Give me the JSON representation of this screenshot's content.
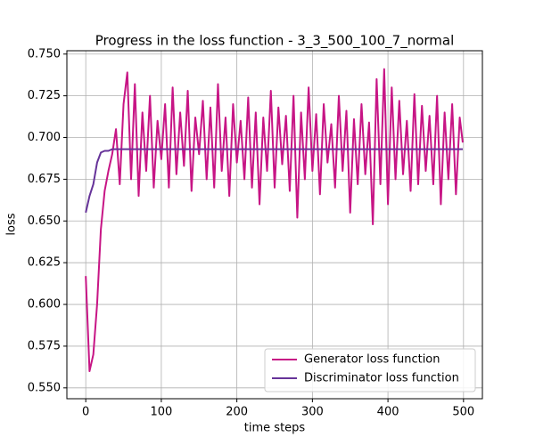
{
  "chart_data": {
    "type": "line",
    "title": "Progress in the loss function - 3_3_500_100_7_normal",
    "xlabel": "time steps",
    "ylabel": "loss",
    "x": [
      0,
      5,
      10,
      15,
      20,
      25,
      30,
      35,
      40,
      45,
      50,
      55,
      60,
      65,
      70,
      75,
      80,
      85,
      90,
      95,
      100,
      105,
      110,
      115,
      120,
      125,
      130,
      135,
      140,
      145,
      150,
      155,
      160,
      165,
      170,
      175,
      180,
      185,
      190,
      195,
      200,
      205,
      210,
      215,
      220,
      225,
      230,
      235,
      240,
      245,
      250,
      255,
      260,
      265,
      270,
      275,
      280,
      285,
      290,
      295,
      300,
      305,
      310,
      315,
      320,
      325,
      330,
      335,
      340,
      345,
      350,
      355,
      360,
      365,
      370,
      375,
      380,
      385,
      390,
      395,
      400,
      405,
      410,
      415,
      420,
      425,
      430,
      435,
      440,
      445,
      450,
      455,
      460,
      465,
      470,
      475,
      480,
      485,
      490,
      495,
      499
    ],
    "series": [
      {
        "name": "Generator loss function",
        "color": "#c71585",
        "values": [
          0.617,
          0.56,
          0.57,
          0.6,
          0.645,
          0.668,
          0.68,
          0.69,
          0.705,
          0.672,
          0.72,
          0.739,
          0.675,
          0.732,
          0.665,
          0.715,
          0.68,
          0.725,
          0.67,
          0.71,
          0.687,
          0.72,
          0.67,
          0.73,
          0.678,
          0.715,
          0.683,
          0.728,
          0.668,
          0.712,
          0.69,
          0.722,
          0.675,
          0.718,
          0.67,
          0.732,
          0.68,
          0.712,
          0.665,
          0.72,
          0.685,
          0.71,
          0.675,
          0.724,
          0.67,
          0.715,
          0.66,
          0.712,
          0.68,
          0.728,
          0.67,
          0.718,
          0.684,
          0.713,
          0.668,
          0.725,
          0.652,
          0.715,
          0.675,
          0.73,
          0.68,
          0.714,
          0.666,
          0.72,
          0.685,
          0.708,
          0.67,
          0.725,
          0.68,
          0.716,
          0.655,
          0.711,
          0.672,
          0.72,
          0.678,
          0.709,
          0.648,
          0.735,
          0.672,
          0.741,
          0.66,
          0.73,
          0.675,
          0.722,
          0.678,
          0.71,
          0.668,
          0.726,
          0.672,
          0.719,
          0.68,
          0.713,
          0.672,
          0.725,
          0.66,
          0.715,
          0.675,
          0.72,
          0.666,
          0.712,
          0.697
        ]
      },
      {
        "name": "Discriminator loss function",
        "color": "#663399",
        "values": [
          0.655,
          0.665,
          0.672,
          0.685,
          0.691,
          0.692,
          0.692,
          0.693,
          0.693,
          0.693,
          0.693,
          0.693,
          0.693,
          0.693,
          0.693,
          0.693,
          0.693,
          0.693,
          0.693,
          0.693,
          0.693,
          0.693,
          0.693,
          0.693,
          0.693,
          0.693,
          0.693,
          0.693,
          0.693,
          0.693,
          0.693,
          0.693,
          0.693,
          0.693,
          0.693,
          0.693,
          0.693,
          0.693,
          0.693,
          0.693,
          0.693,
          0.693,
          0.693,
          0.693,
          0.693,
          0.693,
          0.693,
          0.693,
          0.693,
          0.693,
          0.693,
          0.693,
          0.693,
          0.693,
          0.693,
          0.693,
          0.693,
          0.693,
          0.693,
          0.693,
          0.693,
          0.693,
          0.693,
          0.693,
          0.693,
          0.693,
          0.693,
          0.693,
          0.693,
          0.693,
          0.693,
          0.693,
          0.693,
          0.693,
          0.693,
          0.693,
          0.693,
          0.693,
          0.693,
          0.693,
          0.693,
          0.693,
          0.693,
          0.693,
          0.693,
          0.693,
          0.693,
          0.693,
          0.693,
          0.693,
          0.693,
          0.693,
          0.693,
          0.693,
          0.693,
          0.693,
          0.693,
          0.693,
          0.693,
          0.693,
          0.693
        ]
      }
    ],
    "xlim": [
      -25,
      525
    ],
    "xticks": [
      0,
      100,
      200,
      300,
      400,
      500
    ],
    "ylim": [
      0.5435,
      0.752
    ],
    "yticks": [
      {
        "value": 0.55,
        "label": "0.550"
      },
      0.575,
      {
        "value": 0.6,
        "label": "0.600"
      },
      0.625,
      {
        "value": 0.65,
        "label": "0.650"
      },
      0.675,
      {
        "value": 0.7,
        "label": "0.700"
      },
      0.725,
      {
        "value": 0.75,
        "label": "0.750"
      }
    ],
    "grid": true,
    "legend": "lower right"
  }
}
